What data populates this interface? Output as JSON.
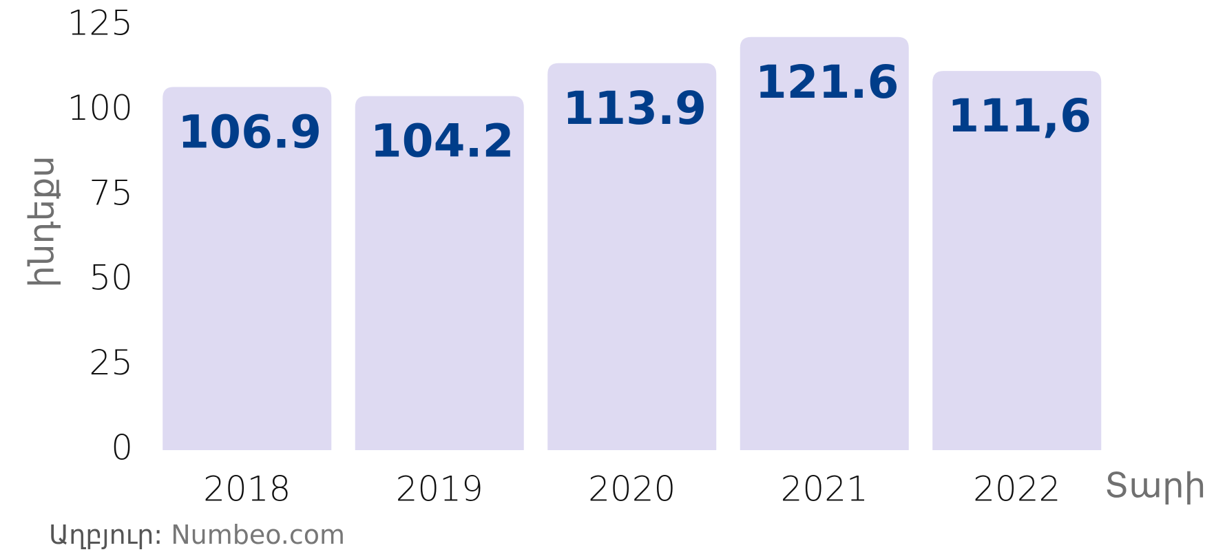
{
  "chart_data": {
    "type": "bar",
    "categories": [
      "2018",
      "2019",
      "2020",
      "2021",
      "2022"
    ],
    "values": [
      106.9,
      104.2,
      113.9,
      121.6,
      111.6
    ],
    "value_labels": [
      "106.9",
      "104.2",
      "113.9",
      "121.6",
      "111,6"
    ],
    "color": "#dedaf2",
    "label_color": "#003d8a",
    "ylim": [
      0,
      125
    ],
    "yticks": [
      0,
      25,
      50,
      75,
      100,
      125
    ],
    "ylabel": "ինդեքս",
    "xlabel": "Տարի",
    "source_label": "Աղբյուր:",
    "source": "Numbeo.com"
  }
}
